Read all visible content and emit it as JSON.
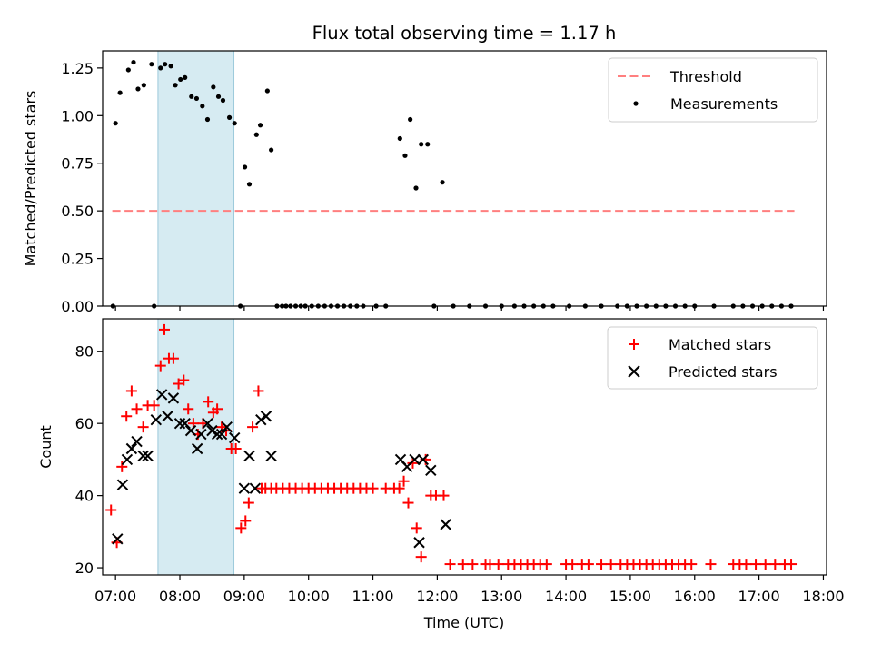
{
  "title": "Flux total observing time = 1.17 h",
  "colors": {
    "threshold": "#ff7f7f",
    "measurements": "#000000",
    "matched": "#ff0000",
    "predicted": "#000000",
    "span": "#add8e6"
  },
  "chart_data": [
    {
      "type": "scatter",
      "ylabel": "Matched/Predicted stars",
      "xlabel": "",
      "xlim": [
        6.8,
        18.05
      ],
      "ylim": [
        0,
        1.34
      ],
      "yticks": [
        0.0,
        0.25,
        0.5,
        0.75,
        1.0,
        1.25
      ],
      "ytick_labels": [
        "0.00",
        "0.25",
        "0.50",
        "0.75",
        "1.00",
        "1.25"
      ],
      "legend_position": "top-right",
      "shaded_span": [
        7.66,
        8.84
      ],
      "threshold": {
        "name": "Threshold",
        "y": 0.5,
        "x_range": [
          6.95,
          17.55
        ]
      },
      "measurements": {
        "name": "Measurements",
        "x": [
          6.96,
          7.0,
          7.07,
          7.2,
          7.28,
          7.35,
          7.44,
          7.56,
          7.6,
          7.7,
          7.77,
          7.86,
          7.93,
          8.01,
          8.08,
          8.18,
          8.26,
          8.35,
          8.43,
          8.52,
          8.6,
          8.67,
          8.77,
          8.85,
          8.94,
          9.01,
          9.08,
          9.19,
          9.25,
          9.36,
          9.42,
          9.51,
          9.59,
          9.65,
          9.72,
          9.8,
          9.88,
          9.95,
          10.05,
          10.15,
          10.25,
          10.35,
          10.45,
          10.55,
          10.65,
          10.75,
          10.85,
          11.05,
          11.2,
          11.42,
          11.5,
          11.58,
          11.67,
          11.75,
          11.85,
          11.95,
          12.08,
          12.25,
          12.5,
          12.75,
          13.0,
          13.2,
          13.35,
          13.5,
          13.65,
          13.8,
          14.05,
          14.3,
          14.55,
          14.8,
          14.95,
          15.1,
          15.25,
          15.4,
          15.55,
          15.7,
          15.85,
          16.0,
          16.3,
          16.6,
          16.75,
          16.9,
          17.05,
          17.2,
          17.35,
          17.5
        ],
        "y": [
          0.0,
          0.96,
          1.12,
          1.24,
          1.28,
          1.14,
          1.16,
          1.27,
          0.0,
          1.25,
          1.27,
          1.26,
          1.16,
          1.19,
          1.2,
          1.1,
          1.09,
          1.05,
          0.98,
          1.15,
          1.1,
          1.08,
          0.99,
          0.96,
          0.0,
          0.73,
          0.64,
          0.9,
          0.95,
          1.13,
          0.82,
          0.0,
          0.0,
          0.0,
          0.0,
          0.0,
          0.0,
          0.0,
          0.0,
          0.0,
          0.0,
          0.0,
          0.0,
          0.0,
          0.0,
          0.0,
          0.0,
          0.0,
          0.0,
          0.88,
          0.79,
          0.98,
          0.62,
          0.85,
          0.85,
          0.0,
          0.65,
          0.0,
          0.0,
          0.0,
          0.0,
          0.0,
          0.0,
          0.0,
          0.0,
          0.0,
          0.0,
          0.0,
          0.0,
          0.0,
          0.0,
          0.0,
          0.0,
          0.0,
          0.0,
          0.0,
          0.0,
          0.0,
          0.0,
          0.0,
          0.0,
          0.0,
          0.0,
          0.0,
          0.0,
          0.0
        ]
      }
    },
    {
      "type": "scatter",
      "xlabel": "Time (UTC)",
      "ylabel": "Count",
      "xlim": [
        6.8,
        18.05
      ],
      "ylim": [
        18,
        89
      ],
      "yticks": [
        20,
        40,
        60,
        80
      ],
      "ytick_labels": [
        "20",
        "40",
        "60",
        "80"
      ],
      "xticks": [
        7,
        8,
        9,
        10,
        11,
        12,
        13,
        14,
        15,
        16,
        17,
        18
      ],
      "xtick_labels": [
        "07:00",
        "08:00",
        "09:00",
        "10:00",
        "11:00",
        "12:00",
        "13:00",
        "14:00",
        "15:00",
        "16:00",
        "17:00",
        "18:00"
      ],
      "legend_position": "top-right",
      "shaded_span": [
        7.66,
        8.84
      ],
      "series": [
        {
          "name": "Matched stars",
          "marker": "plus",
          "x": [
            6.93,
            7.02,
            7.1,
            7.17,
            7.25,
            7.33,
            7.43,
            7.5,
            7.6,
            7.7,
            7.76,
            7.83,
            7.9,
            7.98,
            8.06,
            8.13,
            8.21,
            8.28,
            8.36,
            8.44,
            8.52,
            8.58,
            8.65,
            8.72,
            8.8,
            8.87,
            8.95,
            9.02,
            9.07,
            9.13,
            9.22,
            9.27,
            9.33,
            9.42,
            9.5,
            9.6,
            9.7,
            9.8,
            9.9,
            10.0,
            10.1,
            10.2,
            10.3,
            10.4,
            10.5,
            10.6,
            10.7,
            10.8,
            10.9,
            11.0,
            11.2,
            11.33,
            11.41,
            11.48,
            11.55,
            11.62,
            11.68,
            11.75,
            11.82,
            11.9,
            11.98,
            12.1,
            12.2,
            12.4,
            12.55,
            12.75,
            12.82,
            12.95,
            13.1,
            13.2,
            13.3,
            13.4,
            13.5,
            13.6,
            13.7,
            14.0,
            14.1,
            14.25,
            14.35,
            14.55,
            14.7,
            14.85,
            14.95,
            15.05,
            15.15,
            15.25,
            15.35,
            15.45,
            15.55,
            15.65,
            15.75,
            15.85,
            15.95,
            16.25,
            16.6,
            16.7,
            16.8,
            16.95,
            17.1,
            17.25,
            17.4,
            17.5
          ],
          "y": [
            36,
            27,
            48,
            62,
            69,
            64,
            59,
            65,
            65,
            76,
            86,
            78,
            78,
            71,
            72,
            64,
            60,
            57,
            60,
            66,
            63,
            64,
            59,
            58,
            53,
            53,
            31,
            33,
            38,
            59,
            69,
            42,
            42,
            42,
            42,
            42,
            42,
            42,
            42,
            42,
            42,
            42,
            42,
            42,
            42,
            42,
            42,
            42,
            42,
            42,
            42,
            42,
            42,
            44,
            38,
            49,
            31,
            23,
            50,
            40,
            40,
            40,
            21,
            21,
            21,
            21,
            21,
            21,
            21,
            21,
            21,
            21,
            21,
            21,
            21,
            21,
            21,
            21,
            21,
            21,
            21,
            21,
            21,
            21,
            21,
            21,
            21,
            21,
            21,
            21,
            21,
            21,
            21,
            21,
            21,
            21,
            21,
            21,
            21,
            21,
            21,
            21
          ]
        },
        {
          "name": "Predicted stars",
          "marker": "x",
          "x": [
            7.03,
            7.11,
            7.18,
            7.25,
            7.33,
            7.43,
            7.5,
            7.63,
            7.72,
            7.81,
            7.9,
            8.0,
            8.08,
            8.17,
            8.27,
            8.33,
            8.43,
            8.5,
            8.58,
            8.65,
            8.73,
            8.85,
            9.0,
            9.08,
            9.17,
            9.26,
            9.34,
            9.42,
            11.43,
            11.53,
            11.65,
            11.72,
            11.78,
            11.9,
            12.13
          ],
          "y": [
            28,
            43,
            50,
            53,
            55,
            51,
            51,
            61,
            68,
            62,
            67,
            60,
            60,
            58,
            53,
            57,
            60,
            58,
            57,
            57,
            59,
            56,
            42,
            51,
            42,
            61,
            62,
            51,
            50,
            48,
            50,
            27,
            50,
            47,
            32
          ]
        }
      ]
    }
  ]
}
